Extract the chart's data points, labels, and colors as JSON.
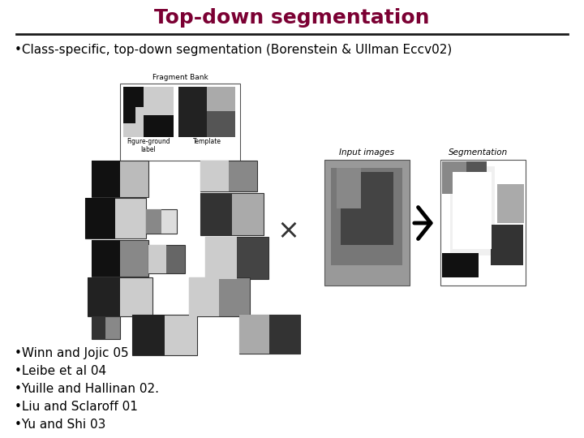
{
  "title": "Top-down segmentation",
  "title_color": "#7B0033",
  "title_fontsize": 18,
  "title_fontweight": "bold",
  "line_color": "#1a1a1a",
  "bullet1": "•Class-specific, top-down segmentation (Borenstein & Ullman Eccv02)",
  "bullet2": "•Winn and Jojic 05",
  "bullet3": "•Leibe et al 04",
  "bullet4": "•Yuille and Hallinan 02.",
  "bullet5": "•Liu and Sclaroff 01",
  "bullet6": "•Yu and Shi 03",
  "bullet_fontsize": 11,
  "small_fontsize": 6,
  "label_fontsize": 7.5,
  "bg_color": "#ffffff",
  "figsize": [
    7.2,
    5.4
  ],
  "dpi": 100,
  "fb_label": "Fragment Bank",
  "fg_label": "Figure-ground\nlabel",
  "tmpl_label": "Template",
  "input_label": "Input images",
  "seg_label": "Segmentation"
}
